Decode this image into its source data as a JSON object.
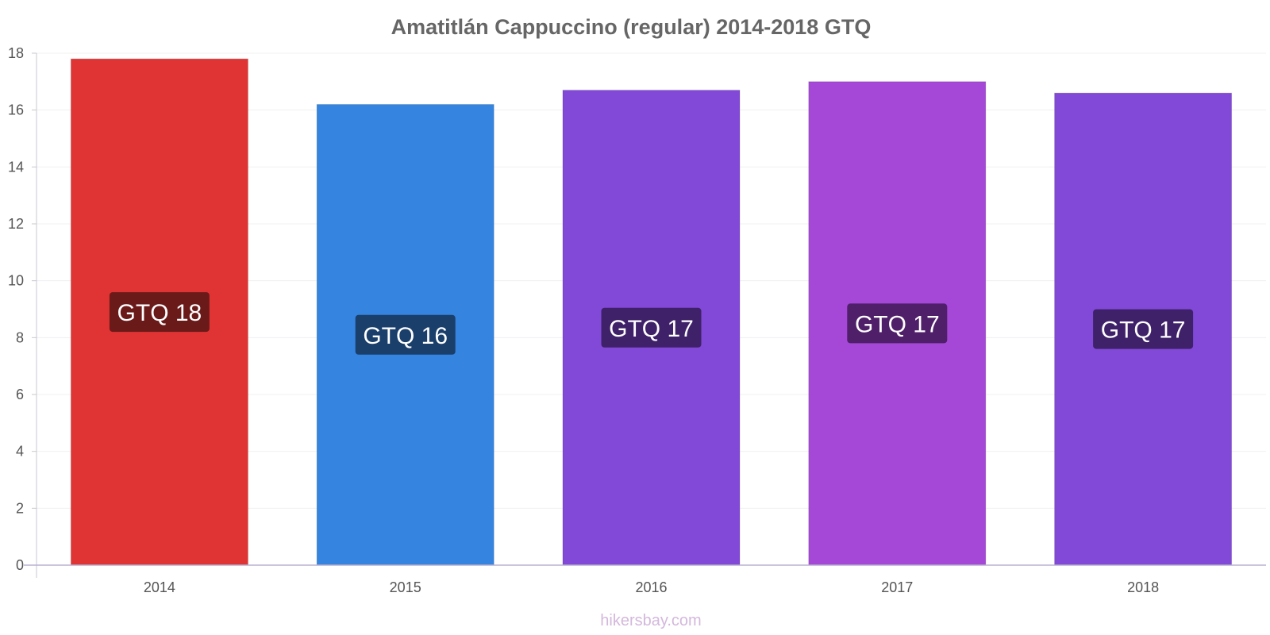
{
  "chart_data": {
    "type": "bar",
    "title": "Amatitlán Cappuccino (regular) 2014-2018 GTQ",
    "xlabel": "",
    "ylabel": "",
    "ylim": [
      0,
      18
    ],
    "yticks": [
      0,
      2,
      4,
      6,
      8,
      10,
      12,
      14,
      16,
      18
    ],
    "categories": [
      "2014",
      "2015",
      "2016",
      "2017",
      "2018"
    ],
    "values": [
      17.8,
      16.2,
      16.7,
      17.0,
      16.6
    ],
    "data_labels": [
      "GTQ 18",
      "GTQ 16",
      "GTQ 17",
      "GTQ 17",
      "GTQ 17"
    ],
    "bar_colors": [
      "#e03434",
      "#3584e0",
      "#8249d8",
      "#a548d8",
      "#8249d8"
    ],
    "label_colors": [
      "#6b1a1a",
      "#1a3f6b",
      "#3f2169",
      "#4f1f69",
      "#3f2169"
    ],
    "grid": true,
    "legend": "none"
  },
  "credit": "hikersbay.com"
}
